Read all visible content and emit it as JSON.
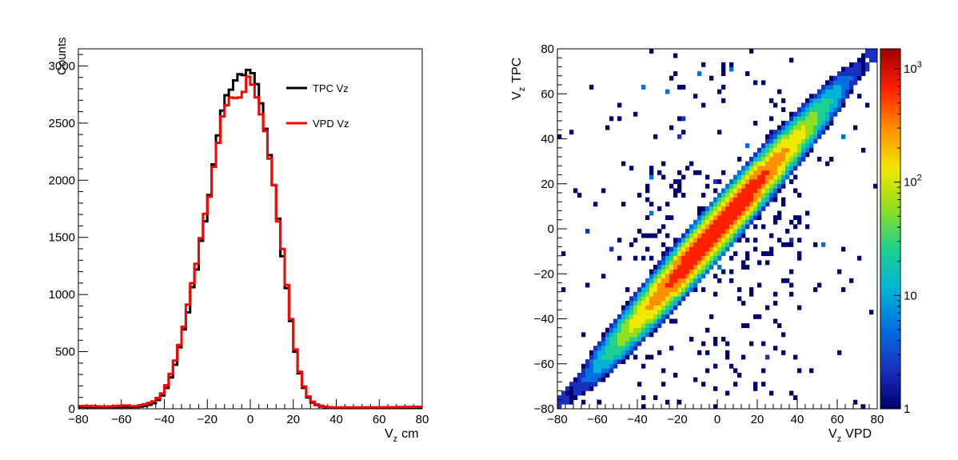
{
  "chart_data": [
    {
      "type": "line",
      "plot_style": "step histogram",
      "xlabel": "V",
      "xlabel_sub": "z",
      "xlabel_unit": "cm",
      "ylabel": "Counts",
      "xlim": [
        -80,
        80
      ],
      "ylim": [
        0,
        3150
      ],
      "x_ticks": [
        -80,
        -60,
        -40,
        -20,
        0,
        20,
        40,
        60,
        80
      ],
      "y_ticks": [
        0,
        500,
        1000,
        1500,
        2000,
        2500,
        3000
      ],
      "legend_position": "top-right",
      "x": [
        -78,
        -74,
        -70,
        -66,
        -62,
        -58,
        -54,
        -50,
        -46,
        -44,
        -42,
        -40,
        -38,
        -36,
        -34,
        -32,
        -30,
        -28,
        -26,
        -24,
        -22,
        -20,
        -18,
        -16,
        -14,
        -12,
        -10,
        -8,
        -6,
        -4,
        -2,
        -1,
        0,
        1,
        2,
        4,
        6,
        8,
        10,
        12,
        14,
        16,
        18,
        20,
        22,
        24,
        26,
        28,
        30,
        32,
        34,
        36,
        40,
        50,
        60,
        70,
        78
      ],
      "series": [
        {
          "name": "TPC Vz",
          "color": "#000000",
          "values": [
            15,
            15,
            15,
            15,
            15,
            15,
            15,
            20,
            40,
            60,
            90,
            140,
            220,
            320,
            470,
            600,
            760,
            950,
            1150,
            1330,
            1560,
            1760,
            2000,
            2270,
            2530,
            2700,
            2780,
            2850,
            2880,
            2920,
            2950,
            2980,
            2960,
            2920,
            2900,
            2740,
            2590,
            2360,
            2080,
            1800,
            1500,
            1220,
            900,
            600,
            380,
            240,
            130,
            70,
            40,
            25,
            15,
            10,
            8,
            10,
            12,
            12,
            14
          ]
        },
        {
          "name": "VPD Vz",
          "color": "#ff0000",
          "values": [
            25,
            25,
            20,
            20,
            25,
            30,
            20,
            35,
            55,
            75,
            110,
            160,
            250,
            360,
            500,
            640,
            800,
            990,
            1200,
            1380,
            1600,
            1780,
            1990,
            2230,
            2480,
            2650,
            2700,
            2720,
            2690,
            2720,
            2830,
            2910,
            2880,
            2840,
            2800,
            2660,
            2540,
            2320,
            2060,
            1800,
            1510,
            1230,
            920,
            630,
            400,
            250,
            140,
            80,
            45,
            30,
            20,
            15,
            12,
            12,
            12,
            15,
            18
          ]
        }
      ]
    },
    {
      "type": "heatmap",
      "xlabel": "V",
      "xlabel_sub": "z",
      "xlabel_unit": "VPD",
      "ylabel": "V",
      "ylabel_sub": "z",
      "ylabel_unit": "TPC",
      "xlim": [
        -80,
        80
      ],
      "ylim": [
        -80,
        80
      ],
      "x_ticks": [
        -80,
        -60,
        -40,
        -20,
        0,
        20,
        40,
        60,
        80
      ],
      "y_ticks": [
        -80,
        -60,
        -40,
        -20,
        0,
        20,
        40,
        60,
        80
      ],
      "colorbar_scale": "log",
      "colorbar_range": [
        1,
        1500
      ],
      "colorbar_ticks": [
        {
          "value": 1,
          "label": "1"
        },
        {
          "value": 10,
          "label": "10"
        },
        {
          "value": 100,
          "label": "10",
          "exp": "2"
        },
        {
          "value": 1000,
          "label": "10",
          "exp": "3"
        }
      ],
      "bin_width": 2,
      "diagonal": {
        "peak": 1000,
        "sigma_x": 20,
        "perp_sigma": 3,
        "x_range": [
          -80,
          80
        ]
      },
      "off_diagonal_density": "sparse, mostly 1-2 counts, concentrated within |VPD| < 40",
      "colors": [
        "#00006e",
        "#1a30c0",
        "#0070e0",
        "#00b4d8",
        "#20d090",
        "#90e020",
        "#f0e800",
        "#ff9000",
        "#ff2000",
        "#a00000"
      ]
    }
  ]
}
